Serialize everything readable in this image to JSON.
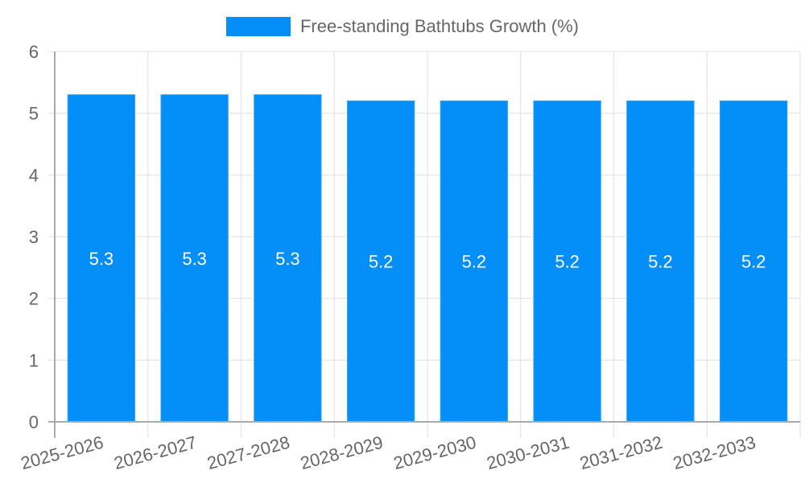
{
  "chart_data": {
    "type": "bar",
    "title": "",
    "categories": [
      "2025-2026",
      "2026-2027",
      "2027-2028",
      "2028-2029",
      "2029-2030",
      "2030-2031",
      "2031-2032",
      "2032-2033"
    ],
    "series": [
      {
        "name": "Free-standing Bathtubs Growth (%)",
        "values": [
          5.3,
          5.3,
          5.3,
          5.2,
          5.2,
          5.2,
          5.2,
          5.2
        ],
        "color": "#038ff7"
      }
    ],
    "xlabel": "",
    "ylabel": "",
    "ylim": [
      0,
      6
    ],
    "yticks": [
      0,
      1,
      2,
      3,
      4,
      5,
      6
    ],
    "grid": true,
    "legend_position": "top",
    "data_labels": true
  },
  "legend": {
    "label": "Free-standing Bathtubs Growth (%)"
  }
}
